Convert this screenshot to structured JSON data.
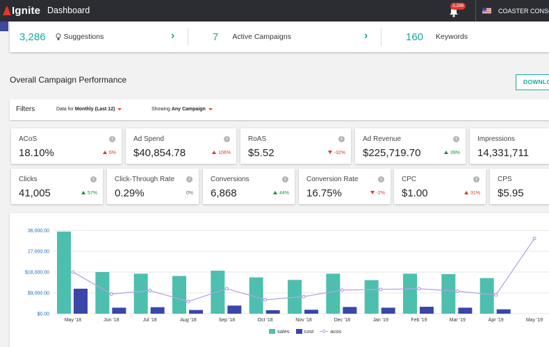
{
  "nav": {
    "logo": "Ignite",
    "title": "Dashboard",
    "notification_count": "3,286",
    "account": "COASTER CONSC",
    "icons": {
      "logo": "flask-icon",
      "bell": "bell-icon",
      "flag": "us-flag-icon"
    }
  },
  "summary": [
    {
      "value": "3,286",
      "label": "Suggestions",
      "icon": "lightbulb-icon"
    },
    {
      "value": "7",
      "label": "Active Campaigns"
    },
    {
      "value": "160",
      "label": "Keywords"
    }
  ],
  "section": {
    "title": "Overall Campaign Performance",
    "download": "DOWNLO"
  },
  "filters": {
    "label": "Filters",
    "data_prefix": "Data for",
    "data_value": "Monthly (Last 12)",
    "showing_prefix": "Showing",
    "showing_value": "Any Campaign",
    "edge": "F"
  },
  "metrics_row1": [
    {
      "label": "ACoS",
      "value": "18.10%",
      "delta": "6%",
      "trend": "up",
      "color": "down"
    },
    {
      "label": "Ad Spend",
      "value": "$40,854.78",
      "delta": "106%",
      "trend": "up",
      "color": "down"
    },
    {
      "label": "RoAS",
      "value": "$5.52",
      "delta": "-32%",
      "trend": "down",
      "color": "down"
    },
    {
      "label": "Ad Revenue",
      "value": "$225,719.70",
      "delta": "39%",
      "trend": "up",
      "color": "up"
    },
    {
      "label": "Impressions",
      "value": "14,331,711",
      "delta": "",
      "trend": "",
      "color": ""
    }
  ],
  "metrics_row2": [
    {
      "label": "Clicks",
      "value": "41,005",
      "delta": "57%",
      "trend": "up",
      "color": "up"
    },
    {
      "label": "Click-Through Rate",
      "value": "0.29%",
      "delta": "0%",
      "trend": "",
      "color": "neutral"
    },
    {
      "label": "Conversions",
      "value": "6,868",
      "delta": "44%",
      "trend": "up",
      "color": "up"
    },
    {
      "label": "Conversion Rate",
      "value": "16.75%",
      "delta": "-2%",
      "trend": "down",
      "color": "down"
    },
    {
      "label": "CPC",
      "value": "$1.00",
      "delta": "31%",
      "trend": "up",
      "color": "down"
    },
    {
      "label": "CPS",
      "value": "$5.95",
      "delta": "",
      "trend": "",
      "color": ""
    }
  ],
  "colors": {
    "accent": "#19a99b",
    "sales": "#4dbfae",
    "cost": "#3a46a8",
    "acos": "#b9a2e6",
    "negative": "#e2372b",
    "positive": "#1c8f3f"
  },
  "chart_data": {
    "type": "bar",
    "categories": [
      "May '18",
      "Jun '18",
      "Jul '18",
      "Aug '18",
      "Sep '18",
      "Oct '18",
      "Nov '18",
      "Dec '18",
      "Jan '19",
      "Feb '19",
      "Mar '19",
      "Apr '19",
      "May '19"
    ],
    "yticks": [
      "$0.00",
      "$9,000.00",
      "$18,000.00",
      "27,000.00",
      "36,000.00"
    ],
    "ylim": [
      0,
      36000
    ],
    "series": [
      {
        "name": "sales",
        "kind": "bar",
        "values": [
          35500,
          18000,
          17300,
          16300,
          18600,
          15700,
          14600,
          17300,
          14500,
          17300,
          17100,
          15400,
          null
        ]
      },
      {
        "name": "cost",
        "kind": "bar",
        "values": [
          10800,
          2600,
          2800,
          1600,
          3500,
          1500,
          1700,
          2900,
          2600,
          3000,
          2600,
          1900,
          null
        ]
      },
      {
        "name": "acos",
        "kind": "line",
        "values": [
          18000,
          8500,
          10000,
          5300,
          10800,
          6000,
          7400,
          10200,
          10500,
          10800,
          9700,
          8100,
          32500
        ]
      }
    ],
    "legend": [
      "sales",
      "cost",
      "acos"
    ],
    "legend_position": "bottom-center",
    "grid": "horizontal"
  }
}
